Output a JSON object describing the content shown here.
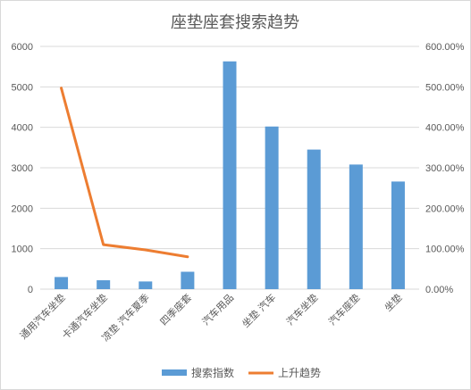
{
  "chart_data": {
    "type": "bar+line",
    "title": "座垫座套搜索趋势",
    "categories": [
      "通用汽车坐垫",
      "卡通汽车坐垫",
      "凉垫 汽车夏季",
      "四季座套",
      "汽车用品",
      "坐垫 汽车",
      "汽车坐垫",
      "汽车座垫",
      "坐垫"
    ],
    "y_left": {
      "min": 0,
      "max": 6000,
      "ticks": [
        0,
        1000,
        2000,
        3000,
        4000,
        5000,
        6000
      ]
    },
    "y_right": {
      "min": 0,
      "max": 6,
      "ticks": [
        "0.00%",
        "100.00%",
        "200.00%",
        "300.00%",
        "400.00%",
        "500.00%",
        "600.00%"
      ]
    },
    "series": [
      {
        "name": "搜索指数",
        "type": "bar",
        "axis": "left",
        "color": "#5b9bd5",
        "values": [
          300,
          220,
          190,
          430,
          5630,
          4020,
          3450,
          3080,
          2660
        ]
      },
      {
        "name": "上升趋势",
        "type": "line",
        "axis": "right",
        "color": "#ed7d31",
        "values": [
          4.97,
          1.1,
          0.97,
          0.8,
          null,
          null,
          null,
          null,
          null
        ]
      }
    ],
    "legend_position": "bottom",
    "grid": true
  }
}
